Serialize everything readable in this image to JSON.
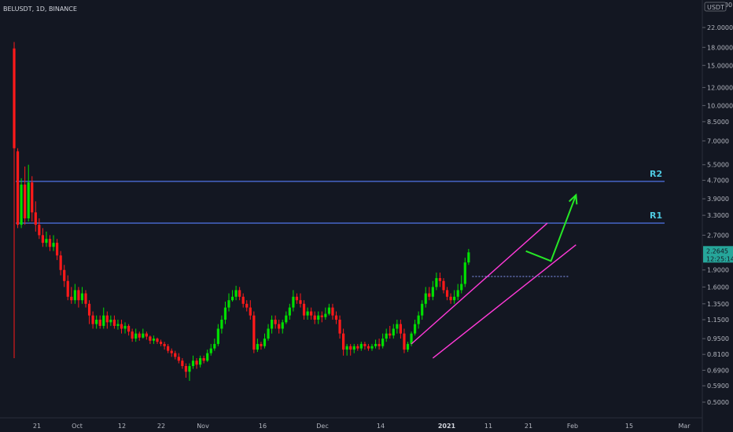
{
  "header": {
    "symbol_info": "BELUSDT, 1D, BINANCE",
    "currency_badge": "USDT",
    "top_axis_value": "30.0000"
  },
  "colors": {
    "background": "#131722",
    "up_candle": "#00e000",
    "down_candle": "#ff1a1a",
    "channel": "#ff3ad8",
    "resistance": "#4a6bd6",
    "projection_arrow": "#26e826",
    "level_label": "#4ec9e0",
    "axis_text": "#b2b5be"
  },
  "chart_data": {
    "type": "candlestick",
    "y_scale": "log",
    "ylim": [
      0.45,
      30
    ],
    "x_tick_labels": [
      "21",
      "Oct",
      "12",
      "22",
      "Nov",
      "16",
      "Dec",
      "14",
      "2021",
      "11",
      "21",
      "Feb",
      "15",
      "Mar"
    ],
    "x_tick_bold": [
      "2021"
    ],
    "y_tick_labels": [
      "22.0000",
      "18.0000",
      "15.0000",
      "12.0000",
      "10.0000",
      "8.5000",
      "7.0000",
      "5.5000",
      "4.7000",
      "3.9000",
      "3.3000",
      "2.7000",
      "1.9000",
      "1.6000",
      "1.3500",
      "1.1500",
      "0.9500",
      "0.8100",
      "0.6900",
      "0.5900",
      "0.5000"
    ],
    "y_tick_values": [
      22,
      18,
      15,
      12,
      10,
      8.5,
      7,
      5.5,
      4.7,
      3.9,
      3.3,
      2.7,
      1.9,
      1.6,
      1.35,
      1.15,
      0.95,
      0.81,
      0.69,
      0.59,
      0.5
    ],
    "candles": [
      [
        17.8,
        6.5,
        19.0,
        0.78
      ],
      [
        6.3,
        3.0,
        6.5,
        2.9
      ],
      [
        3.0,
        4.5,
        4.8,
        2.9
      ],
      [
        4.5,
        3.2,
        5.4,
        3.0
      ],
      [
        3.2,
        4.6,
        5.5,
        3.1
      ],
      [
        4.6,
        3.4,
        4.9,
        3.1
      ],
      [
        3.4,
        3.0,
        3.8,
        2.8
      ],
      [
        3.0,
        2.7,
        3.2,
        2.6
      ],
      [
        2.7,
        2.5,
        2.9,
        2.4
      ],
      [
        2.5,
        2.6,
        2.8,
        2.4
      ],
      [
        2.6,
        2.4,
        2.7,
        2.3
      ],
      [
        2.4,
        2.5,
        2.7,
        2.3
      ],
      [
        2.5,
        2.2,
        2.6,
        2.1
      ],
      [
        2.2,
        1.9,
        2.3,
        1.8
      ],
      [
        1.9,
        1.7,
        2.0,
        1.6
      ],
      [
        1.7,
        1.45,
        1.8,
        1.4
      ],
      [
        1.45,
        1.4,
        1.6,
        1.35
      ],
      [
        1.4,
        1.55,
        1.65,
        1.35
      ],
      [
        1.55,
        1.4,
        1.6,
        1.3
      ],
      [
        1.4,
        1.5,
        1.6,
        1.35
      ],
      [
        1.5,
        1.35,
        1.55,
        1.3
      ],
      [
        1.35,
        1.2,
        1.4,
        1.1
      ],
      [
        1.2,
        1.1,
        1.25,
        1.05
      ],
      [
        1.1,
        1.15,
        1.2,
        1.05
      ],
      [
        1.15,
        1.08,
        1.2,
        1.05
      ],
      [
        1.08,
        1.2,
        1.3,
        1.05
      ],
      [
        1.2,
        1.12,
        1.25,
        1.05
      ],
      [
        1.12,
        1.15,
        1.2,
        1.08
      ],
      [
        1.15,
        1.08,
        1.2,
        1.05
      ],
      [
        1.08,
        1.1,
        1.15,
        1.04
      ],
      [
        1.1,
        1.05,
        1.15,
        1.0
      ],
      [
        1.05,
        1.08,
        1.12,
        1.0
      ],
      [
        1.08,
        1.02,
        1.1,
        0.98
      ],
      [
        1.02,
        0.95,
        1.05,
        0.92
      ],
      [
        0.95,
        1.0,
        1.05,
        0.92
      ],
      [
        1.0,
        0.96,
        1.02,
        0.93
      ],
      [
        0.96,
        1.0,
        1.05,
        0.95
      ],
      [
        1.0,
        0.97,
        1.02,
        0.94
      ],
      [
        0.97,
        0.93,
        0.98,
        0.9
      ],
      [
        0.93,
        0.95,
        0.98,
        0.9
      ],
      [
        0.95,
        0.92,
        0.96,
        0.9
      ],
      [
        0.92,
        0.9,
        0.94,
        0.88
      ],
      [
        0.9,
        0.88,
        0.92,
        0.85
      ],
      [
        0.88,
        0.84,
        0.9,
        0.82
      ],
      [
        0.84,
        0.82,
        0.86,
        0.79
      ],
      [
        0.82,
        0.79,
        0.84,
        0.77
      ],
      [
        0.79,
        0.76,
        0.82,
        0.74
      ],
      [
        0.76,
        0.72,
        0.78,
        0.7
      ],
      [
        0.72,
        0.68,
        0.74,
        0.64
      ],
      [
        0.68,
        0.72,
        0.74,
        0.62
      ],
      [
        0.72,
        0.76,
        0.8,
        0.7
      ],
      [
        0.76,
        0.73,
        0.78,
        0.7
      ],
      [
        0.73,
        0.78,
        0.8,
        0.71
      ],
      [
        0.78,
        0.76,
        0.8,
        0.74
      ],
      [
        0.76,
        0.82,
        0.85,
        0.75
      ],
      [
        0.82,
        0.86,
        0.9,
        0.8
      ],
      [
        0.86,
        0.9,
        0.95,
        0.84
      ],
      [
        0.9,
        1.05,
        1.1,
        0.88
      ],
      [
        1.05,
        1.15,
        1.2,
        1.0
      ],
      [
        1.15,
        1.3,
        1.38,
        1.1
      ],
      [
        1.3,
        1.4,
        1.5,
        1.25
      ],
      [
        1.4,
        1.45,
        1.55,
        1.38
      ],
      [
        1.45,
        1.55,
        1.62,
        1.4
      ],
      [
        1.55,
        1.45,
        1.6,
        1.4
      ],
      [
        1.45,
        1.35,
        1.5,
        1.3
      ],
      [
        1.35,
        1.3,
        1.4,
        1.25
      ],
      [
        1.3,
        1.2,
        1.4,
        1.15
      ],
      [
        1.2,
        0.85,
        1.25,
        0.82
      ],
      [
        0.85,
        0.9,
        0.95,
        0.83
      ],
      [
        0.9,
        0.88,
        0.92,
        0.85
      ],
      [
        0.88,
        0.95,
        1.0,
        0.86
      ],
      [
        0.95,
        1.05,
        1.1,
        0.93
      ],
      [
        1.05,
        1.15,
        1.2,
        1.0
      ],
      [
        1.15,
        1.1,
        1.2,
        1.05
      ],
      [
        1.1,
        1.05,
        1.15,
        1.0
      ],
      [
        1.05,
        1.12,
        1.15,
        1.0
      ],
      [
        1.12,
        1.2,
        1.25,
        1.1
      ],
      [
        1.2,
        1.3,
        1.35,
        1.15
      ],
      [
        1.3,
        1.45,
        1.55,
        1.25
      ],
      [
        1.45,
        1.4,
        1.5,
        1.35
      ],
      [
        1.4,
        1.35,
        1.5,
        1.3
      ],
      [
        1.35,
        1.2,
        1.4,
        1.15
      ],
      [
        1.2,
        1.25,
        1.3,
        1.15
      ],
      [
        1.25,
        1.2,
        1.3,
        1.15
      ],
      [
        1.2,
        1.15,
        1.25,
        1.1
      ],
      [
        1.15,
        1.2,
        1.25,
        1.1
      ],
      [
        1.2,
        1.18,
        1.25,
        1.12
      ],
      [
        1.18,
        1.22,
        1.3,
        1.15
      ],
      [
        1.22,
        1.3,
        1.35,
        1.2
      ],
      [
        1.3,
        1.2,
        1.35,
        1.15
      ],
      [
        1.2,
        1.15,
        1.25,
        1.1
      ],
      [
        1.15,
        1.0,
        1.2,
        0.95
      ],
      [
        1.0,
        0.85,
        1.05,
        0.8
      ],
      [
        0.85,
        0.88,
        0.9,
        0.8
      ],
      [
        0.88,
        0.85,
        0.9,
        0.8
      ],
      [
        0.85,
        0.88,
        0.9,
        0.82
      ],
      [
        0.88,
        0.86,
        0.9,
        0.84
      ],
      [
        0.86,
        0.9,
        0.92,
        0.84
      ],
      [
        0.9,
        0.88,
        0.92,
        0.85
      ],
      [
        0.88,
        0.86,
        0.9,
        0.84
      ],
      [
        0.86,
        0.88,
        0.9,
        0.84
      ],
      [
        0.88,
        0.9,
        0.94,
        0.86
      ],
      [
        0.9,
        0.88,
        0.95,
        0.85
      ],
      [
        0.88,
        0.95,
        1.0,
        0.86
      ],
      [
        0.95,
        1.0,
        1.05,
        0.92
      ],
      [
        1.0,
        0.98,
        1.08,
        0.95
      ],
      [
        0.98,
        1.05,
        1.1,
        0.95
      ],
      [
        1.05,
        1.1,
        1.15,
        1.0
      ],
      [
        1.1,
        1.0,
        1.15,
        0.95
      ],
      [
        1.0,
        0.85,
        1.05,
        0.82
      ],
      [
        0.85,
        0.9,
        0.92,
        0.83
      ],
      [
        0.9,
        1.0,
        1.02,
        0.88
      ],
      [
        1.0,
        1.1,
        1.15,
        0.98
      ],
      [
        1.1,
        1.2,
        1.25,
        1.05
      ],
      [
        1.2,
        1.35,
        1.4,
        1.15
      ],
      [
        1.35,
        1.5,
        1.6,
        1.3
      ],
      [
        1.5,
        1.45,
        1.6,
        1.4
      ],
      [
        1.45,
        1.6,
        1.7,
        1.4
      ],
      [
        1.6,
        1.75,
        1.85,
        1.55
      ],
      [
        1.75,
        1.7,
        1.85,
        1.6
      ],
      [
        1.7,
        1.55,
        1.75,
        1.5
      ],
      [
        1.55,
        1.45,
        1.6,
        1.4
      ],
      [
        1.45,
        1.4,
        1.5,
        1.35
      ],
      [
        1.4,
        1.45,
        1.55,
        1.35
      ],
      [
        1.45,
        1.55,
        1.65,
        1.4
      ],
      [
        1.55,
        1.65,
        1.8,
        1.5
      ],
      [
        1.65,
        2.05,
        2.15,
        1.6
      ],
      [
        2.05,
        2.27,
        2.35,
        2.0
      ]
    ],
    "channel_upper": {
      "from": {
        "index": 111,
        "price": 0.9
      },
      "to": {
        "index": 149,
        "price": 3.05
      }
    },
    "channel_lower": {
      "from": {
        "index": 117,
        "price": 0.78
      },
      "to": {
        "index": 157,
        "price": 2.45
      }
    },
    "current_price_line": {
      "from_index": 128,
      "to_index": 155,
      "price": 1.78
    },
    "resistance_levels": [
      {
        "name": "R2",
        "price": 4.65
      },
      {
        "name": "R1",
        "price": 3.05
      }
    ],
    "projection_arrow": [
      {
        "index": 143,
        "price": 2.3
      },
      {
        "index": 150,
        "price": 2.08
      },
      {
        "index": 157,
        "price": 4.05
      }
    ],
    "last_price": {
      "label": "2.2645",
      "countdown": "12:25:14",
      "price": 2.27
    }
  }
}
